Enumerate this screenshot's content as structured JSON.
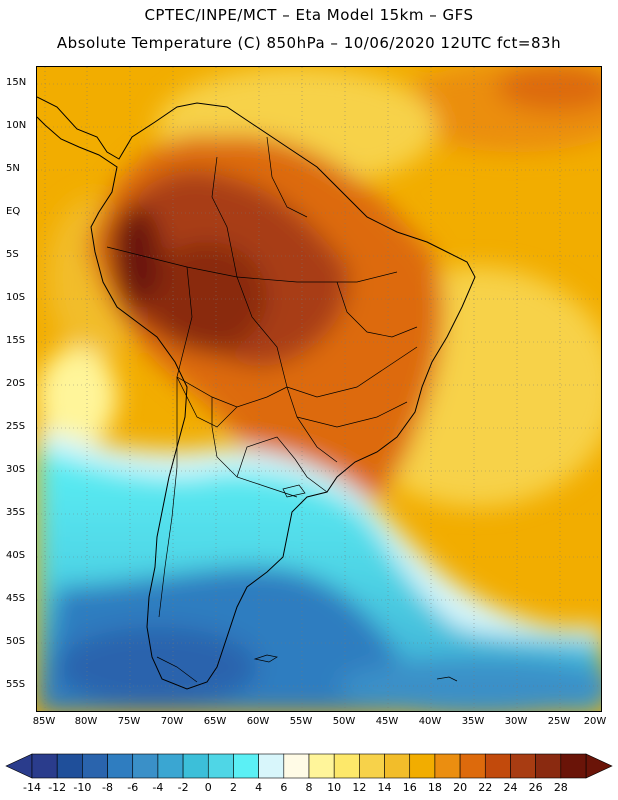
{
  "header": {
    "line1": "CPTEC/INPE/MCT –  Eta Model 15km – GFS",
    "line2": "Absolute Temperature (C) 850hPa – 10/06/2020 12UTC fct=83h"
  },
  "map": {
    "lat_labels": [
      "15N",
      "10N",
      "5N",
      "EQ",
      "5S",
      "10S",
      "15S",
      "20S",
      "25S",
      "30S",
      "35S",
      "40S",
      "45S",
      "50S",
      "55S"
    ],
    "lon_labels": [
      "85W",
      "80W",
      "75W",
      "70W",
      "65W",
      "60W",
      "55W",
      "50W",
      "45W",
      "40W",
      "35W",
      "30W",
      "25W",
      "20W"
    ],
    "colors": {
      "background_warm": "#f2ad00",
      "hot": "#a83c12",
      "hottest": "#6a1408",
      "cold": "#2f7dc0",
      "cyan": "#5bf0f5"
    }
  },
  "colorbar": {
    "labels": [
      "-14",
      "-12",
      "-10",
      "-8",
      "-6",
      "-4",
      "-2",
      "0",
      "2",
      "4",
      "6",
      "8",
      "10",
      "12",
      "14",
      "16",
      "18",
      "20",
      "22",
      "24",
      "26",
      "28"
    ],
    "colors": [
      "#2a3c8c",
      "#1f4f9a",
      "#2a64ad",
      "#2f7dc0",
      "#3a90c8",
      "#3aa6d2",
      "#3cbfd9",
      "#4fd6e6",
      "#5bf0f5",
      "#d8f6fb",
      "#fffbe6",
      "#fff59a",
      "#fde86a",
      "#f7d24a",
      "#f2bd2a",
      "#f2ad00",
      "#eb8e10",
      "#dd6a0c",
      "#c24a0c",
      "#a83c12",
      "#8a2a10",
      "#6a1408"
    ]
  }
}
